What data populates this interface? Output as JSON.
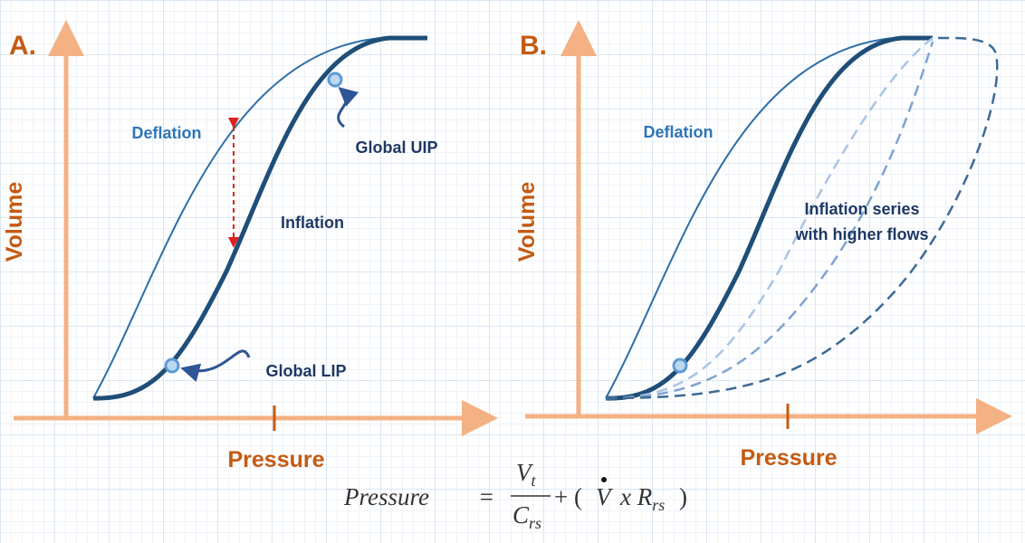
{
  "panel_a": {
    "letter": "A.",
    "y_axis_label": "Volume",
    "x_axis_label": "Pressure",
    "deflation_label": "Deflation",
    "inflation_label": "Inflation",
    "uip_label": "Global UIP",
    "lip_label": "Global LIP"
  },
  "panel_b": {
    "letter": "B.",
    "y_axis_label": "Volume",
    "x_axis_label": "Pressure",
    "deflation_label": "Deflation",
    "series_label": [
      "Inflation series",
      "with higher flows"
    ]
  },
  "formula": {
    "lhs": "Pressure",
    "equals": "=",
    "numerator": "V",
    "numerator_sub": "t",
    "denominator": "C",
    "denominator_sub": "rs",
    "plus": "+ (",
    "flow": "V",
    "times": "x R",
    "resistance_sub": "rs",
    "close": ")"
  }
}
